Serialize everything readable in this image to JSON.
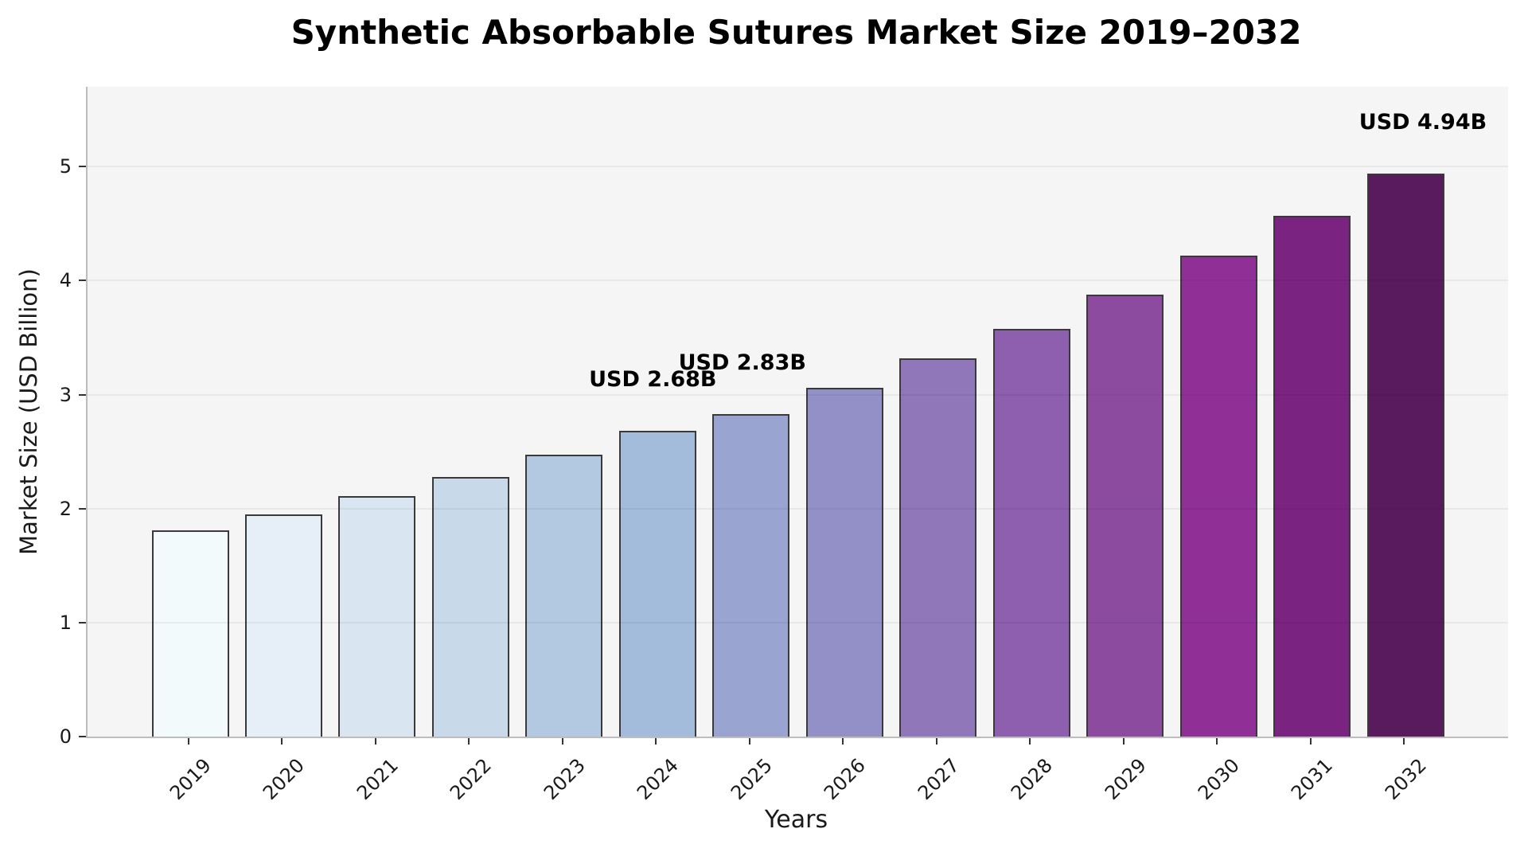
{
  "title": "Synthetic Absorbable Sutures Market Size 2019–2032",
  "chart_data": {
    "type": "bar",
    "title": "Synthetic Absorbable Sutures Market Size 2019–2032",
    "xlabel": "Years",
    "ylabel": "Market Size (USD Billion)",
    "categories": [
      "2019",
      "2020",
      "2021",
      "2022",
      "2023",
      "2024",
      "2025",
      "2026",
      "2027",
      "2028",
      "2029",
      "2030",
      "2031",
      "2032"
    ],
    "values": [
      1.81,
      1.95,
      2.11,
      2.28,
      2.47,
      2.68,
      2.83,
      3.06,
      3.32,
      3.58,
      3.88,
      4.22,
      4.57,
      4.94
    ],
    "bar_colors": [
      "#f3fafb",
      "#e6eff7",
      "#d9e6f2",
      "#c8d9ea",
      "#b3c8e1",
      "#a3bcdc",
      "#9aa4d1",
      "#9390c8",
      "#9077b9",
      "#8d5fae",
      "#8d4ba0",
      "#903097",
      "#7b2381",
      "#5a1a5e"
    ],
    "bar_edge_color": "#3a3a3a",
    "plot_background": "#f5f5f5",
    "figure_background": "#ffffff",
    "grid": true,
    "legend": false,
    "yticks": [
      0,
      1,
      2,
      3,
      4,
      5
    ],
    "ylim": [
      0,
      5.7
    ],
    "annotations": [
      {
        "text": "USD 2.68B",
        "category": "2024",
        "value": 2.68
      },
      {
        "text": "USD 2.83B",
        "category": "2025",
        "value": 2.83
      },
      {
        "text": "USD 4.94B",
        "category": "2032",
        "value": 4.94
      }
    ]
  }
}
